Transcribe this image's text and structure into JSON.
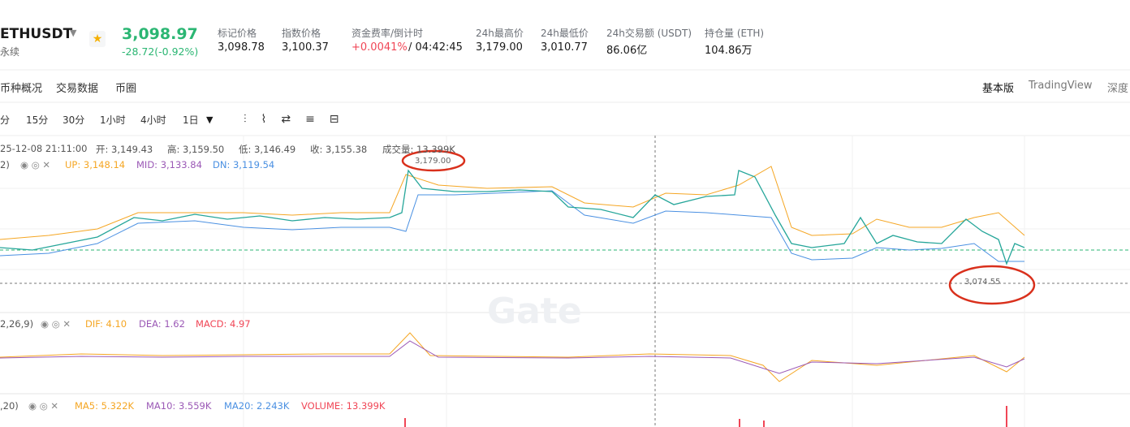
{
  "header": {
    "symbol": "ETHUSDT",
    "contract": "永续",
    "price": "3,098.97",
    "change": "-28.72(-0.92%)",
    "stats": [
      {
        "label": "标记价格",
        "value": "3,098.78"
      },
      {
        "label": "指数价格",
        "value": "3,100.37"
      },
      {
        "label": "资金费率/倒计时",
        "value": "+0.0041%",
        "extra": "/ 04:42:45"
      },
      {
        "label": "24h最高价",
        "value": "3,179.00"
      },
      {
        "label": "24h最低价",
        "value": "3,010.77"
      },
      {
        "label": "24h交易额 (USDT)",
        "value": "86.06亿"
      },
      {
        "label": "持仓量 (ETH)",
        "value": "104.86万"
      }
    ]
  },
  "tabs": [
    "币种概况",
    "交易数据",
    "币圈"
  ],
  "views": [
    "基本版",
    "TradingView",
    "深度"
  ],
  "intervals": [
    "分",
    "15分",
    "30分",
    "1小时",
    "4小时",
    "1日"
  ],
  "ohlc": {
    "time": "25-12-08 21:11:00",
    "open": "开: 3,149.43",
    "high": "高: 3,159.50",
    "low": "低: 3,146.49",
    "close": "收: 3,155.38",
    "volume": "成交量: 13.399K"
  },
  "boll": {
    "params": "2)",
    "up": "UP: 3,148.14",
    "mid": "MID: 3,133.84",
    "dn": "DN: 3,119.54"
  },
  "annotations": {
    "high": "3,179.00",
    "low": "3,074.55"
  },
  "macd": {
    "params": "2,26,9)",
    "dif": "DIF: 4.10",
    "dea": "DEA: 1.62",
    "macd": "MACD: 4.97"
  },
  "volume": {
    "params": ",20)",
    "ma5": "MA5: 5.322K",
    "ma10": "MA10: 3.559K",
    "ma20": "MA20: 2.243K",
    "vol": "VOLUME: 13.399K"
  },
  "watermark": "Gate"
}
